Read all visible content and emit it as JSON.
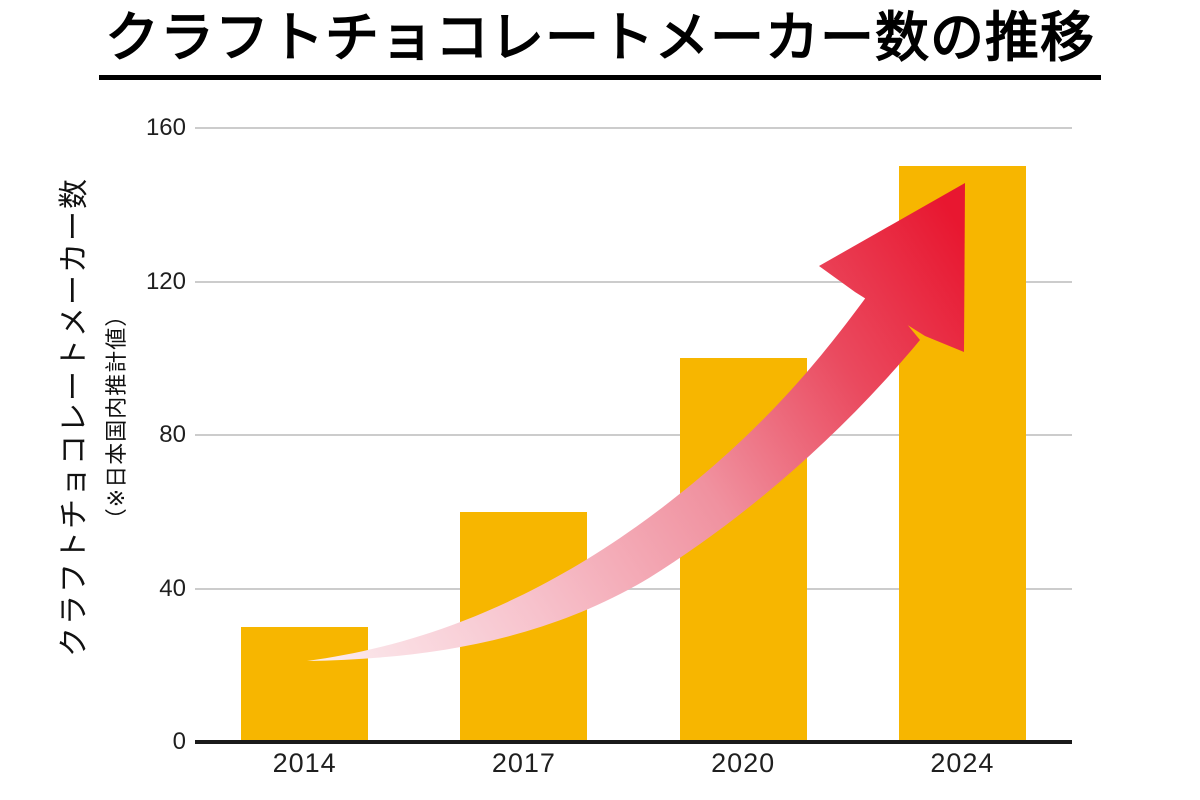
{
  "title": {
    "text": "クラフトチョコレートメーカー数の推移"
  },
  "y_axis": {
    "label_main": "クラフトチョコレートメーカー数",
    "label_sub": "（※日本国内推計値）"
  },
  "chart_data": {
    "type": "bar",
    "title": "クラフトチョコレートメーカー数の推移",
    "categories": [
      "2014",
      "2017",
      "2020",
      "2024"
    ],
    "values": [
      30,
      60,
      100,
      150
    ],
    "xlabel": "",
    "ylabel": "クラフトチョコレートメーカー数（※日本国内推計値）",
    "ylim": [
      0,
      160
    ],
    "yticks": [
      0,
      40,
      80,
      120,
      160
    ],
    "grid": "horizontal",
    "legend": "none",
    "colors": {
      "bar": "#F7B600",
      "gridline": "#CCCCCC",
      "axis": "#1A1A1A",
      "tick_label": "#1F1F1F",
      "title": "#000000"
    },
    "annotation": {
      "type": "trend-arrow",
      "description": "curved tapering arrow sweeping up from the 2014 bar to the 2024 bar",
      "gradient": [
        {
          "offset": 0,
          "color": "#FCEDF0"
        },
        {
          "offset": 0.28,
          "color": "#F7C2CC"
        },
        {
          "offset": 0.55,
          "color": "#F0919F"
        },
        {
          "offset": 0.78,
          "color": "#EA4A5F"
        },
        {
          "offset": 1,
          "color": "#E81730"
        }
      ]
    }
  }
}
